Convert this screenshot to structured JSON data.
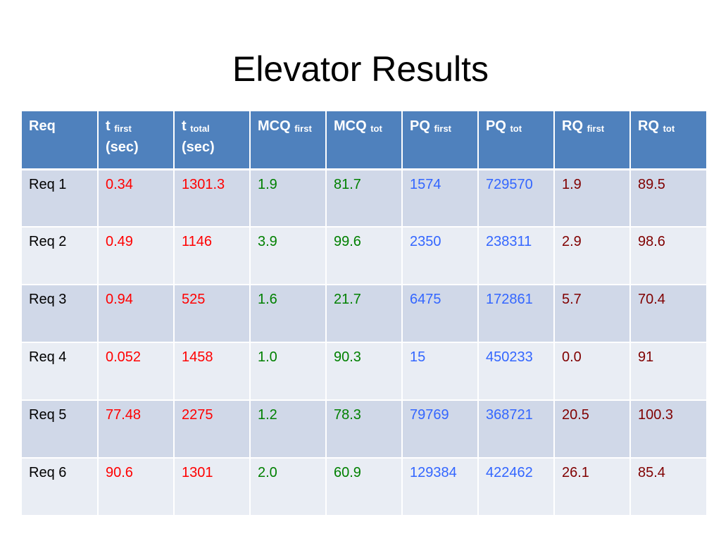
{
  "slide": {
    "title": "Elevator Results"
  },
  "table": {
    "headers": [
      {
        "main": "Req",
        "sub": "",
        "line2": ""
      },
      {
        "main": "t ",
        "sub": "first",
        "line2": "(sec)"
      },
      {
        "main": "t ",
        "sub": "total",
        "line2": "(sec)"
      },
      {
        "main": "MCQ ",
        "sub": "first",
        "line2": ""
      },
      {
        "main": "MCQ ",
        "sub": "tot",
        "line2": ""
      },
      {
        "main": "PQ ",
        "sub": "first",
        "line2": ""
      },
      {
        "main": "PQ ",
        "sub": "tot",
        "line2": ""
      },
      {
        "main": "RQ ",
        "sub": "first",
        "line2": ""
      },
      {
        "main": "RQ ",
        "sub": "tot",
        "line2": ""
      }
    ],
    "rows": [
      [
        "Req 1",
        "0.34",
        "1301.3",
        "1.9",
        "81.7",
        "1574",
        "729570",
        "1.9",
        "89.5"
      ],
      [
        "Req 2",
        "0.49",
        "1146",
        "3.9",
        "99.6",
        "2350",
        "238311",
        "2.9",
        "98.6"
      ],
      [
        "Req 3",
        "0.94",
        "525",
        "1.6",
        "21.7",
        "6475",
        "172861",
        "5.7",
        "70.4"
      ],
      [
        "Req 4",
        "0.052",
        "1458",
        "1.0",
        "90.3",
        "15",
        "450233",
        "0.0",
        "91"
      ],
      [
        "Req 5",
        "77.48",
        "2275",
        "1.2",
        "78.3",
        "79769",
        "368721",
        "20.5",
        "100.3"
      ],
      [
        "Req 6",
        "90.6",
        "1301",
        "2.0",
        "60.9",
        "129384",
        "422462",
        "26.1",
        "85.4"
      ]
    ]
  },
  "colors": {
    "header_bg": "#4f81bd",
    "row_odd_bg": "#d0d8e8",
    "row_even_bg": "#e9edf4",
    "time_text": "#ff0000",
    "mcq_text": "#008000",
    "pq_text": "#3366ff",
    "rq_text": "#800000"
  }
}
